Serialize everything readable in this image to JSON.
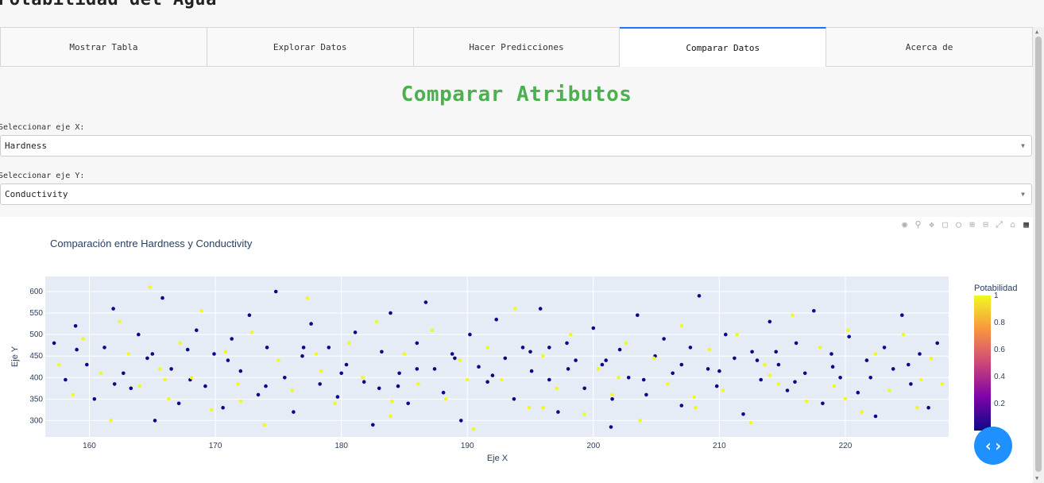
{
  "app": {
    "title": "Potabilidad del Agua"
  },
  "tabs": [
    {
      "label": "Mostrar Tabla"
    },
    {
      "label": "Explorar Datos"
    },
    {
      "label": "Hacer Predicciones"
    },
    {
      "label": "Comparar Datos"
    },
    {
      "label": "Acerca de"
    }
  ],
  "active_tab": "Comparar Datos",
  "section": {
    "title": "Comparar Atributos"
  },
  "selectors": {
    "x": {
      "label": "Seleccionar eje X:",
      "value": "Hardness"
    },
    "y": {
      "label": "Seleccionar eje Y:",
      "value": "Conductivity"
    }
  },
  "colors": {
    "accent": "#4caf50",
    "tab_active": "#1975fa",
    "fab": "#1e90ff",
    "class0": "#0d0887",
    "class1": "#f0f921",
    "plot_bg": "#e5ecf6"
  },
  "icons": [
    "camera-icon",
    "zoom-icon",
    "pan-icon",
    "box-select-icon",
    "lasso-icon",
    "zoom-in-icon",
    "zoom-out-icon",
    "autoscale-icon",
    "reset-axes-icon",
    "plotly-logo-icon"
  ],
  "chart_data": {
    "type": "scatter",
    "title": "Comparación entre Hardness y Conductivity",
    "xlabel": "Eje X",
    "ylabel": "Eje Y",
    "xlim": [
      156.5,
      228.2
    ],
    "ylim": [
      262,
      635
    ],
    "x_ticks": [
      160,
      170,
      180,
      190,
      200,
      210,
      220
    ],
    "y_ticks": [
      300,
      350,
      400,
      450,
      500,
      550,
      600
    ],
    "grid": true,
    "colorbar": {
      "title": "Potabilidad",
      "ticks": [
        0.2,
        0.4,
        0.6,
        0.8,
        1
      ],
      "tick_labels": [
        "0.2",
        "0.4",
        "0.6",
        "0.8",
        "1"
      ],
      "colorscale": "plasma",
      "range": [
        0,
        1
      ]
    },
    "series": [
      {
        "color_value": 0,
        "points": [
          [
            157.2,
            480
          ],
          [
            158.1,
            395
          ],
          [
            158.9,
            520
          ],
          [
            159.8,
            430
          ],
          [
            160.4,
            350
          ],
          [
            161.2,
            470
          ],
          [
            161.9,
            560
          ],
          [
            162.7,
            410
          ],
          [
            163.3,
            375
          ],
          [
            163.9,
            500
          ],
          [
            164.6,
            445
          ],
          [
            165.2,
            300
          ],
          [
            165.8,
            585
          ],
          [
            166.5,
            420
          ],
          [
            167.1,
            340
          ],
          [
            167.8,
            465
          ],
          [
            168.5,
            510
          ],
          [
            169.2,
            380
          ],
          [
            169.9,
            455
          ],
          [
            170.6,
            330
          ],
          [
            171.3,
            490
          ],
          [
            172.0,
            415
          ],
          [
            172.7,
            545
          ],
          [
            173.4,
            360
          ],
          [
            174.1,
            470
          ],
          [
            174.8,
            600
          ],
          [
            175.5,
            400
          ],
          [
            176.2,
            320
          ],
          [
            176.9,
            450
          ],
          [
            177.6,
            525
          ],
          [
            178.3,
            385
          ],
          [
            179.0,
            470
          ],
          [
            179.7,
            355
          ],
          [
            180.4,
            430
          ],
          [
            181.1,
            505
          ],
          [
            181.8,
            390
          ],
          [
            182.5,
            290
          ],
          [
            183.2,
            460
          ],
          [
            183.9,
            550
          ],
          [
            184.6,
            410
          ],
          [
            185.3,
            340
          ],
          [
            186.0,
            480
          ],
          [
            186.7,
            575
          ],
          [
            187.4,
            420
          ],
          [
            188.1,
            365
          ],
          [
            188.8,
            455
          ],
          [
            189.5,
            300
          ],
          [
            190.2,
            500
          ],
          [
            190.9,
            425
          ],
          [
            191.6,
            390
          ],
          [
            192.3,
            535
          ],
          [
            193.0,
            445
          ],
          [
            193.7,
            350
          ],
          [
            194.4,
            470
          ],
          [
            195.1,
            415
          ],
          [
            195.8,
            560
          ],
          [
            196.5,
            395
          ],
          [
            197.2,
            320
          ],
          [
            197.9,
            480
          ],
          [
            198.6,
            440
          ],
          [
            199.3,
            375
          ],
          [
            200.0,
            515
          ],
          [
            200.7,
            430
          ],
          [
            201.4,
            285
          ],
          [
            202.1,
            465
          ],
          [
            202.8,
            400
          ],
          [
            203.5,
            545
          ],
          [
            204.2,
            360
          ],
          [
            204.9,
            450
          ],
          [
            205.6,
            490
          ],
          [
            206.3,
            410
          ],
          [
            207.0,
            335
          ],
          [
            207.7,
            470
          ],
          [
            208.4,
            590
          ],
          [
            209.1,
            420
          ],
          [
            209.8,
            380
          ],
          [
            210.5,
            500
          ],
          [
            211.2,
            445
          ],
          [
            211.9,
            315
          ],
          [
            212.6,
            460
          ],
          [
            213.3,
            395
          ],
          [
            214.0,
            530
          ],
          [
            214.7,
            430
          ],
          [
            215.4,
            370
          ],
          [
            216.1,
            480
          ],
          [
            216.8,
            410
          ],
          [
            217.5,
            555
          ],
          [
            218.2,
            340
          ],
          [
            218.9,
            455
          ],
          [
            219.6,
            400
          ],
          [
            220.3,
            495
          ],
          [
            221.0,
            365
          ],
          [
            221.7,
            440
          ],
          [
            222.4,
            310
          ],
          [
            223.1,
            470
          ],
          [
            223.8,
            420
          ],
          [
            224.5,
            545
          ],
          [
            225.2,
            385
          ],
          [
            225.9,
            455
          ],
          [
            226.6,
            330
          ],
          [
            227.3,
            480
          ],
          [
            159.0,
            465
          ],
          [
            162.0,
            385
          ],
          [
            165.0,
            455
          ],
          [
            168.0,
            395
          ],
          [
            171.0,
            440
          ],
          [
            174.0,
            380
          ],
          [
            177.0,
            470
          ],
          [
            180.0,
            410
          ],
          [
            183.0,
            375
          ],
          [
            186.0,
            420
          ],
          [
            189.0,
            445
          ],
          [
            192.0,
            405
          ],
          [
            195.0,
            460
          ],
          [
            198.0,
            420
          ],
          [
            201.0,
            440
          ],
          [
            204.0,
            395
          ],
          [
            207.0,
            430
          ],
          [
            210.0,
            415
          ],
          [
            213.0,
            440
          ],
          [
            216.0,
            390
          ],
          [
            219.0,
            425
          ],
          [
            222.0,
            400
          ],
          [
            225.0,
            430
          ],
          [
            184.5,
            380
          ],
          [
            196.5,
            470
          ],
          [
            201.5,
            350
          ],
          [
            214.5,
            460
          ]
        ]
      },
      {
        "color_value": 1,
        "points": [
          [
            157.6,
            430
          ],
          [
            158.7,
            360
          ],
          [
            159.5,
            490
          ],
          [
            160.9,
            410
          ],
          [
            161.7,
            300
          ],
          [
            162.4,
            530
          ],
          [
            163.1,
            455
          ],
          [
            164.0,
            380
          ],
          [
            164.8,
            610
          ],
          [
            165.6,
            420
          ],
          [
            166.3,
            350
          ],
          [
            167.2,
            480
          ],
          [
            168.1,
            400
          ],
          [
            168.9,
            555
          ],
          [
            169.7,
            325
          ],
          [
            170.8,
            460
          ],
          [
            171.8,
            385
          ],
          [
            172.9,
            505
          ],
          [
            173.9,
            290
          ],
          [
            175.0,
            440
          ],
          [
            176.1,
            370
          ],
          [
            177.3,
            585
          ],
          [
            178.4,
            415
          ],
          [
            179.5,
            340
          ],
          [
            180.6,
            480
          ],
          [
            181.7,
            400
          ],
          [
            182.8,
            530
          ],
          [
            183.9,
            310
          ],
          [
            185.0,
            455
          ],
          [
            186.1,
            385
          ],
          [
            187.2,
            510
          ],
          [
            188.3,
            350
          ],
          [
            189.4,
            440
          ],
          [
            190.5,
            280
          ],
          [
            191.6,
            470
          ],
          [
            192.7,
            395
          ],
          [
            193.8,
            560
          ],
          [
            194.9,
            330
          ],
          [
            196.0,
            450
          ],
          [
            197.1,
            375
          ],
          [
            198.2,
            500
          ],
          [
            199.3,
            315
          ],
          [
            200.4,
            420
          ],
          [
            201.5,
            360
          ],
          [
            202.6,
            480
          ],
          [
            203.7,
            300
          ],
          [
            204.8,
            445
          ],
          [
            205.9,
            385
          ],
          [
            207.0,
            520
          ],
          [
            208.1,
            330
          ],
          [
            209.2,
            465
          ],
          [
            210.3,
            370
          ],
          [
            211.4,
            500
          ],
          [
            212.5,
            295
          ],
          [
            213.6,
            430
          ],
          [
            214.7,
            385
          ],
          [
            215.8,
            545
          ],
          [
            216.9,
            345
          ],
          [
            218.0,
            470
          ],
          [
            219.1,
            380
          ],
          [
            220.2,
            510
          ],
          [
            221.3,
            320
          ],
          [
            222.4,
            455
          ],
          [
            223.5,
            370
          ],
          [
            224.6,
            500
          ],
          [
            225.7,
            330
          ],
          [
            226.8,
            445
          ],
          [
            227.7,
            385
          ],
          [
            166.0,
            395
          ],
          [
            172.0,
            345
          ],
          [
            178.0,
            455
          ],
          [
            184.0,
            345
          ],
          [
            190.0,
            395
          ],
          [
            196.0,
            330
          ],
          [
            202.0,
            400
          ],
          [
            208.0,
            355
          ],
          [
            214.0,
            405
          ],
          [
            220.0,
            350
          ],
          [
            226.0,
            395
          ]
        ]
      }
    ]
  }
}
